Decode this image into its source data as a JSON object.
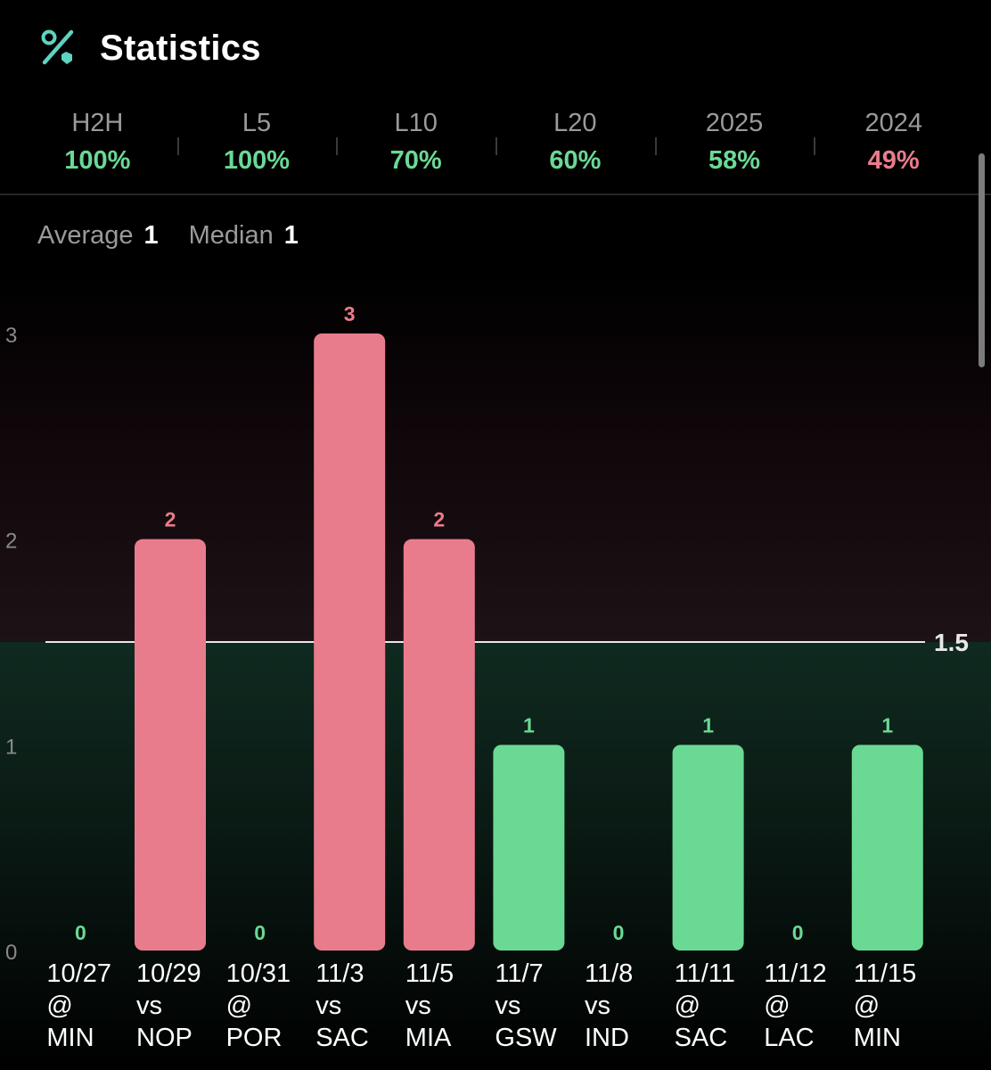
{
  "header": {
    "title": "Statistics",
    "icon": "percent-icon",
    "icon_color": "#5fd3c0"
  },
  "tabs": [
    {
      "label": "H2H",
      "value": "100%",
      "status": "good"
    },
    {
      "label": "L5",
      "value": "100%",
      "status": "good"
    },
    {
      "label": "L10",
      "value": "70%",
      "status": "good"
    },
    {
      "label": "L20",
      "value": "60%",
      "status": "good"
    },
    {
      "label": "2025",
      "value": "58%",
      "status": "good"
    },
    {
      "label": "2024",
      "value": "49%",
      "status": "bad"
    }
  ],
  "summary": {
    "average_label": "Average",
    "average_value": "1",
    "median_label": "Median",
    "median_value": "1"
  },
  "colors": {
    "good": "#6ad994",
    "bad": "#e97c8c",
    "threshold": "#e8e8e8"
  },
  "chart_data": {
    "type": "bar",
    "categories": [
      [
        "10/27",
        "@",
        "MIN"
      ],
      [
        "10/29",
        "vs",
        "NOP"
      ],
      [
        "10/31",
        "@",
        "POR"
      ],
      [
        "11/3",
        "vs",
        "SAC"
      ],
      [
        "11/5",
        "vs",
        "MIA"
      ],
      [
        "11/7",
        "vs",
        "GSW"
      ],
      [
        "11/8",
        "vs",
        "IND"
      ],
      [
        "11/11",
        "@",
        "SAC"
      ],
      [
        "11/12",
        "@",
        "LAC"
      ],
      [
        "11/15",
        "@",
        "MIN"
      ]
    ],
    "values": [
      0,
      2,
      0,
      3,
      2,
      1,
      0,
      1,
      0,
      1
    ],
    "threshold": 1.5,
    "threshold_label": "1.5",
    "y_ticks": [
      0,
      1,
      2,
      3
    ],
    "ylim": [
      0,
      3
    ],
    "title": "",
    "xlabel": "",
    "ylabel": ""
  }
}
